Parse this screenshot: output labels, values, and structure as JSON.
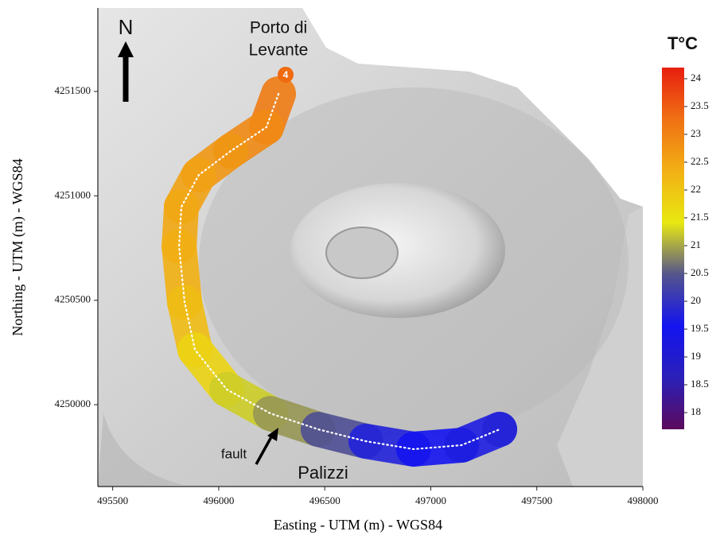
{
  "chart_data": {
    "type": "track_map",
    "x_label": "Easting - UTM (m) - WGS84",
    "y_label": "Northing - UTM (m) - WGS84",
    "xlim": [
      495430,
      498000
    ],
    "ylim": [
      4249608,
      4251900
    ],
    "xticks": [
      495500,
      496000,
      496500,
      497000,
      497500,
      498000
    ],
    "yticks": [
      4250000,
      4250500,
      4251000,
      4251500
    ],
    "annotations": {
      "north": "N",
      "port_line1": "Porto di",
      "port_line2": "Levante",
      "station": "4",
      "fault": "fault",
      "place": "Palizzi"
    },
    "colorbar": {
      "title": "T°C",
      "clim": [
        17.7,
        24.2
      ],
      "ticks": [
        18,
        18.5,
        19,
        19.5,
        20,
        20.5,
        21,
        21.5,
        22,
        22.5,
        23,
        23.5,
        24
      ],
      "colors": [
        "#5c0a5c",
        "#2a20b8",
        "#1414f0",
        "#55558c",
        "#e8e812",
        "#f2b014",
        "#f07014",
        "#e81e10"
      ]
    },
    "track": {
      "x": [
        496282,
        496225,
        496057,
        495906,
        495824,
        495813,
        495839,
        495888,
        496038,
        496244,
        496469,
        496694,
        496919,
        497145,
        497325
      ],
      "y": [
        4251489,
        4251329,
        4251215,
        4251100,
        4250948,
        4250758,
        4250491,
        4250263,
        4250073,
        4249958,
        4249882,
        4249825,
        4249787,
        4249806,
        4249882
      ],
      "values": [
        23.2,
        23,
        22.8,
        22.6,
        22.5,
        22.4,
        22.3,
        22,
        21.5,
        21,
        20.8,
        20,
        19.5,
        19.6,
        19.8
      ]
    }
  }
}
